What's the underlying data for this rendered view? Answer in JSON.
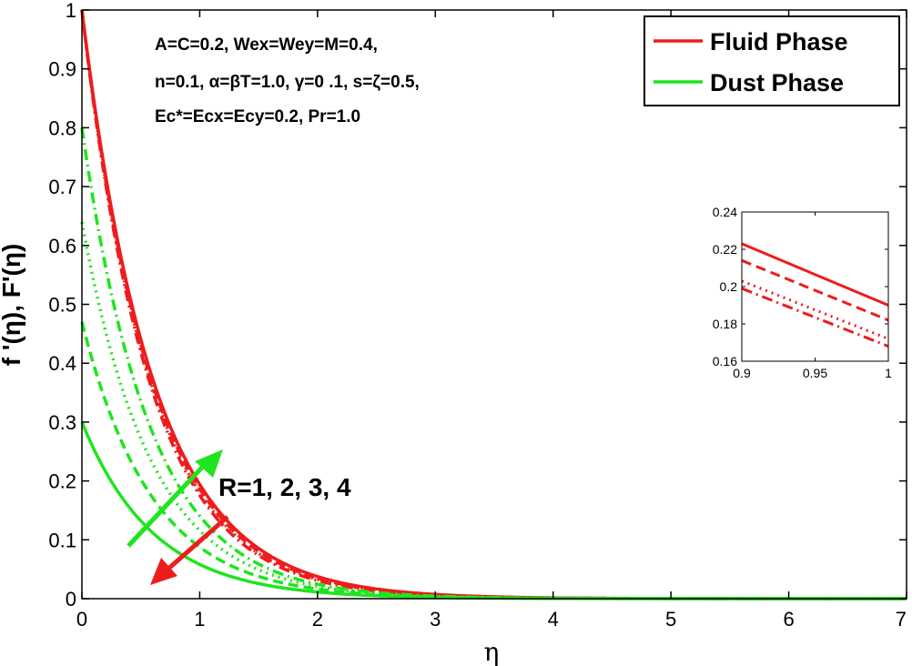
{
  "chart_data": {
    "type": "line",
    "xlabel": "η",
    "ylabel": "f '(η),    F'(η)",
    "xlim": [
      0,
      7
    ],
    "ylim": [
      0,
      1
    ],
    "x_ticks": [
      "0",
      "1",
      "2",
      "3",
      "4",
      "5",
      "6",
      "7"
    ],
    "y_ticks": [
      "0",
      "0.1",
      "0.2",
      "0.3",
      "0.4",
      "0.5",
      "0.6",
      "0.7",
      "0.8",
      "0.9",
      "1"
    ],
    "legend": {
      "position": "top-right",
      "entries": [
        {
          "label": "Fluid Phase",
          "color": "#ee1c1c"
        },
        {
          "label": "Dust Phase",
          "color": "#1fe41f"
        }
      ]
    },
    "parameters": {
      "line1": "A=C=0.2, Wex=Wey=M=0.4,",
      "line2": "n=0.1, α=βT=1.0, γ=0 .1, s=ζ=0.5,",
      "line3": "Ec*=Ecx=Ecy=0.2, Pr=1.0"
    },
    "annotation": "R=1, 2, 3, 4",
    "fluid_series": [
      {
        "name": "R=1",
        "style": "solid",
        "f0": 1.0,
        "decay": 1.64
      },
      {
        "name": "R=2",
        "style": "dashed",
        "f0": 1.0,
        "decay": 1.68
      },
      {
        "name": "R=3",
        "style": "dotted",
        "f0": 1.0,
        "decay": 1.71
      },
      {
        "name": "R=4",
        "style": "dashdot",
        "f0": 1.0,
        "decay": 1.74
      }
    ],
    "dust_series": [
      {
        "name": "R=1",
        "style": "solid",
        "f0": 0.3,
        "peak": 0.0,
        "decay": 1.64
      },
      {
        "name": "R=2",
        "style": "dashed",
        "f0": 0.47,
        "peak": 0.0,
        "decay": 1.68
      },
      {
        "name": "R=3",
        "style": "dotted",
        "f0": 0.64,
        "peak": 0.0,
        "decay": 1.71
      },
      {
        "name": "R=4",
        "style": "dashdot",
        "f0": 0.8,
        "peak": 0.0,
        "decay": 1.74
      }
    ],
    "inset": {
      "xlim": [
        0.9,
        1.0
      ],
      "ylim": [
        0.16,
        0.24
      ],
      "x_ticks": [
        "0.9",
        "0.95",
        "1"
      ],
      "y_ticks": [
        "0.16",
        "0.18",
        "0.2",
        "0.22",
        "0.24"
      ],
      "series": [
        {
          "name": "R=1",
          "style": "solid",
          "y_start": 0.223,
          "y_end": 0.19
        },
        {
          "name": "R=2",
          "style": "dashed",
          "y_start": 0.214,
          "y_end": 0.182
        },
        {
          "name": "R=3",
          "style": "dotted",
          "y_start": 0.203,
          "y_end": 0.172
        },
        {
          "name": "R=4",
          "style": "dashdot",
          "y_start": 0.199,
          "y_end": 0.168
        }
      ]
    }
  }
}
